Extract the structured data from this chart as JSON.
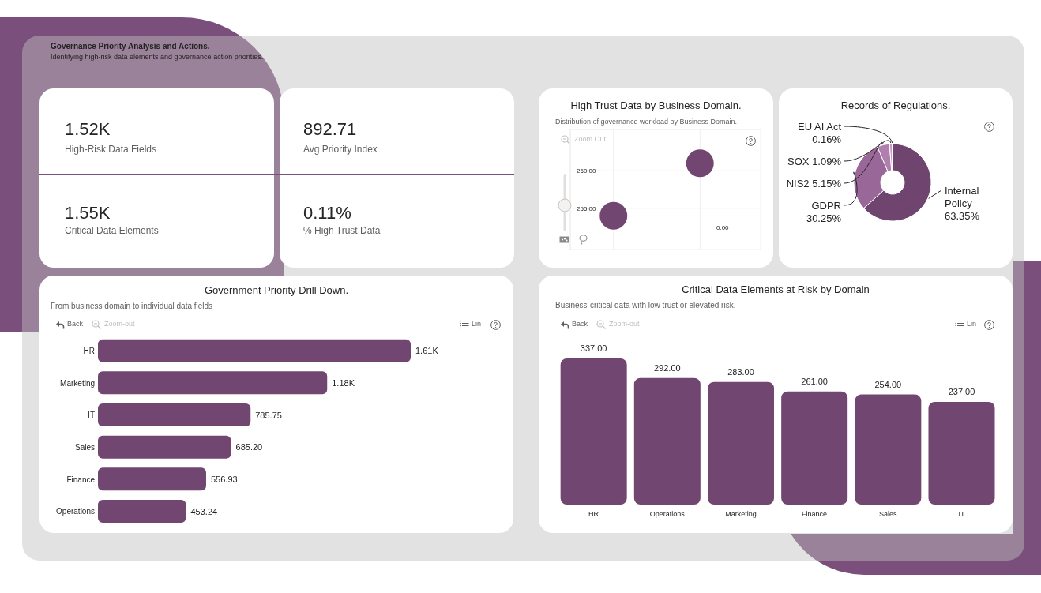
{
  "chart_data": [
    {
      "type": "other",
      "title": "Governance Priority Analysis and Actions.",
      "subtitle": "Identifying high-risk data elements and governance action priorities.",
      "annotations": [
        "1.52K",
        "High-Risk Data Fields",
        "892.71",
        "Avg Priority Index",
        "1.55K",
        "Critical Data Elements",
        "0.11%",
        "% High Trust Data"
      ]
    },
    {
      "type": "bubble",
      "title": "High Trust Data by Business Domain.",
      "subtitle": "Distribution of governance workload by Business Domain.",
      "categories": [
        null,
        null
      ],
      "values": [
        254,
        261
      ],
      "sizes": [
        1,
        1
      ],
      "color": "#714670",
      "ylim": [
        249.5,
        265.5
      ],
      "yticks": [
        {
          "value": 255,
          "label": "255.00"
        },
        {
          "value": 260,
          "label": "260.00"
        }
      ],
      "tick_labels": "y",
      "grid": true,
      "annotations": [
        "Zoom Out",
        "0.00"
      ]
    },
    {
      "type": "donut",
      "title": "Records of Regulations.",
      "categories": [
        "Internal Policy",
        "GDPR",
        "NIS2",
        "SOX",
        "EU AI Act"
      ],
      "values": [
        63.35,
        30.25,
        5.15,
        1.09,
        0.16
      ],
      "value_labels": [
        "63.35%",
        "30.25%",
        "5.15%",
        "1.09%",
        "0.16%"
      ],
      "colors": [
        "#6f4570",
        "#9a6799",
        "#b07fad",
        "#c89dc5",
        "#dfc4dd"
      ]
    },
    {
      "type": "bar",
      "orientation": "horizontal",
      "title": "Government Priority Drill Down.",
      "subtitle": "From business domain to individual data fields",
      "categories": [
        "HR",
        "Marketing",
        "IT",
        "Sales",
        "Finance",
        "Operations"
      ],
      "values": [
        1610,
        1180,
        785.75,
        685.2,
        556.93,
        453.24
      ],
      "value_labels": [
        "1.61K",
        "1.18K",
        "785.75",
        "685.20",
        "556.93",
        "453.24"
      ],
      "color": "#714670",
      "tick_labels": "y",
      "annotations": [
        "Back",
        "Zoom-out",
        "Lin"
      ]
    },
    {
      "type": "bar",
      "title": "Critical Data Elements at Risk by Domain",
      "subtitle": "Business-critical data with low trust or elevated risk.",
      "categories": [
        "HR",
        "Operations",
        "Marketing",
        "Finance",
        "Sales",
        "IT"
      ],
      "values": [
        337,
        292,
        283,
        261,
        254,
        237
      ],
      "value_labels": [
        "337.00",
        "292.00",
        "283.00",
        "261.00",
        "254.00",
        "237.00"
      ],
      "color": "#714670",
      "tick_labels": "x",
      "annotations": [
        "Back",
        "Zoom-out",
        "Lin"
      ]
    }
  ]
}
